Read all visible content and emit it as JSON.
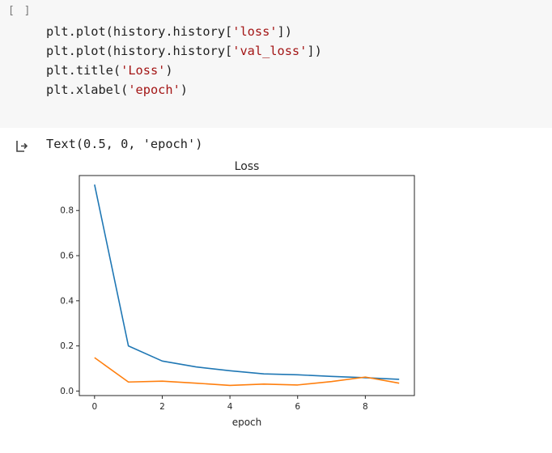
{
  "cell": {
    "run_indicator": "[ ]",
    "code_lines": [
      {
        "pre": "plt.plot(history.history[",
        "str": "'loss'",
        "post": "])"
      },
      {
        "pre": "plt.plot(history.history[",
        "str": "'val_loss'",
        "post": "])"
      },
      {
        "pre": "plt.title(",
        "str": "'Loss'",
        "post": ")"
      },
      {
        "pre": "plt.xlabel(",
        "str": "'epoch'",
        "post": ")"
      }
    ]
  },
  "output": {
    "icon": "output-arrow-icon",
    "text": "Text(0.5, 0, 'epoch')"
  },
  "chart_data": {
    "type": "line",
    "title": "Loss",
    "xlabel": "epoch",
    "ylabel": "",
    "x": [
      0,
      1,
      2,
      3,
      4,
      5,
      6,
      7,
      8,
      9
    ],
    "xticks": [
      0,
      2,
      4,
      6,
      8
    ],
    "yticks": [
      0.0,
      0.2,
      0.4,
      0.6,
      0.8
    ],
    "xlim": [
      -0.45,
      9.45
    ],
    "ylim": [
      -0.02,
      0.955
    ],
    "grid": false,
    "series": [
      {
        "values": [
          0.915,
          0.2,
          0.133,
          0.107,
          0.09,
          0.076,
          0.072,
          0.065,
          0.059,
          0.052
        ],
        "color": "#1f77b4"
      },
      {
        "values": [
          0.148,
          0.04,
          0.044,
          0.035,
          0.025,
          0.031,
          0.027,
          0.042,
          0.062,
          0.035
        ],
        "color": "#ff7f0e"
      }
    ]
  }
}
